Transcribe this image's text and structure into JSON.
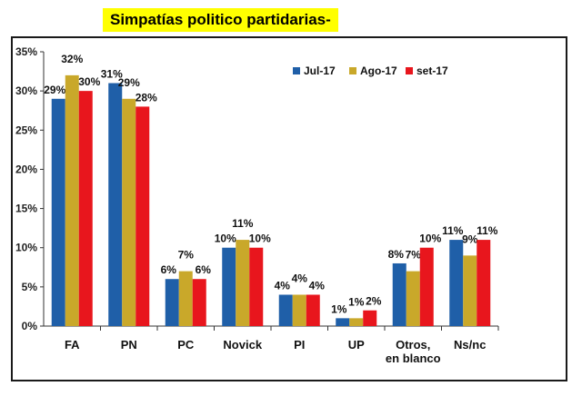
{
  "chart_data": {
    "type": "bar",
    "title": "Simpatías politico partidarias-",
    "categories": [
      "FA",
      "PN",
      "PC",
      "Novick",
      "PI",
      "UP",
      "Otros, en blanco",
      "Ns/nc"
    ],
    "series": [
      {
        "name": "Jul-17",
        "color": "#1f5fa8",
        "values": [
          29,
          31,
          6,
          10,
          4,
          1,
          8,
          11
        ],
        "labels": [
          "29%",
          "31%",
          "6%",
          "10%",
          "4%",
          "1%",
          "8%",
          "11%"
        ]
      },
      {
        "name": "Ago-17",
        "color": "#c9a82a",
        "values": [
          32,
          29,
          7,
          11,
          4,
          1,
          7,
          9
        ],
        "labels": [
          "32%",
          "29%",
          "7%",
          "11%",
          "4%",
          "1%",
          "7%",
          "9%"
        ]
      },
      {
        "name": "set-17",
        "color": "#e8161d",
        "values": [
          30,
          28,
          6,
          10,
          4,
          2,
          10,
          11
        ],
        "labels": [
          "30%",
          "28%",
          "6%",
          "10%",
          "4%",
          "2%",
          "10%",
          "11%"
        ]
      }
    ],
    "yticks": [
      "0%",
      "5%",
      "10%",
      "15%",
      "20%",
      "25%",
      "30%",
      "35%"
    ],
    "ylim": [
      0,
      35
    ],
    "legend": "top-right",
    "grid": false
  }
}
